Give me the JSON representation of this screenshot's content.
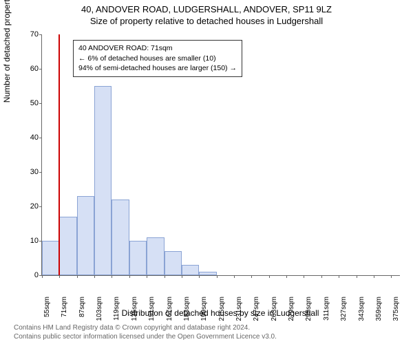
{
  "title_line1": "40, ANDOVER ROAD, LUDGERSHALL, ANDOVER, SP11 9LZ",
  "title_line2": "Size of property relative to detached houses in Ludgershall",
  "ylabel": "Number of detached properties",
  "xlabel": "Distribution of detached houses by size in Ludgershall",
  "chart": {
    "type": "histogram",
    "ylim": [
      0,
      70
    ],
    "ytick_step": 10,
    "yticks": [
      0,
      10,
      20,
      30,
      40,
      50,
      60,
      70
    ],
    "xticks": [
      55,
      71,
      87,
      103,
      119,
      135,
      151,
      167,
      183,
      199,
      215,
      231,
      247,
      263,
      279,
      295,
      311,
      327,
      343,
      359,
      375
    ],
    "xtick_unit": "sqm",
    "xmin": 55,
    "xmax": 383,
    "bars": [
      {
        "x0": 55,
        "x1": 71,
        "value": 10
      },
      {
        "x0": 71,
        "x1": 87,
        "value": 17
      },
      {
        "x0": 87,
        "x1": 103,
        "value": 23
      },
      {
        "x0": 103,
        "x1": 119,
        "value": 55
      },
      {
        "x0": 119,
        "x1": 135,
        "value": 22
      },
      {
        "x0": 135,
        "x1": 151,
        "value": 10
      },
      {
        "x0": 151,
        "x1": 167,
        "value": 11
      },
      {
        "x0": 167,
        "x1": 183,
        "value": 7
      },
      {
        "x0": 183,
        "x1": 199,
        "value": 3
      },
      {
        "x0": 199,
        "x1": 215,
        "value": 1
      }
    ],
    "bar_fill": "#d6e0f5",
    "bar_border": "#8aa3d4",
    "marker_x": 71,
    "marker_color": "#cc0000",
    "background_color": "#ffffff"
  },
  "annotation": {
    "line1": "40 ANDOVER ROAD: 71sqm",
    "line2": "← 6% of detached houses are smaller (10)",
    "line3": "94% of semi-detached houses are larger (150) →"
  },
  "footer": {
    "line1": "Contains HM Land Registry data © Crown copyright and database right 2024.",
    "line2": "Contains public sector information licensed under the Open Government Licence v3.0."
  }
}
